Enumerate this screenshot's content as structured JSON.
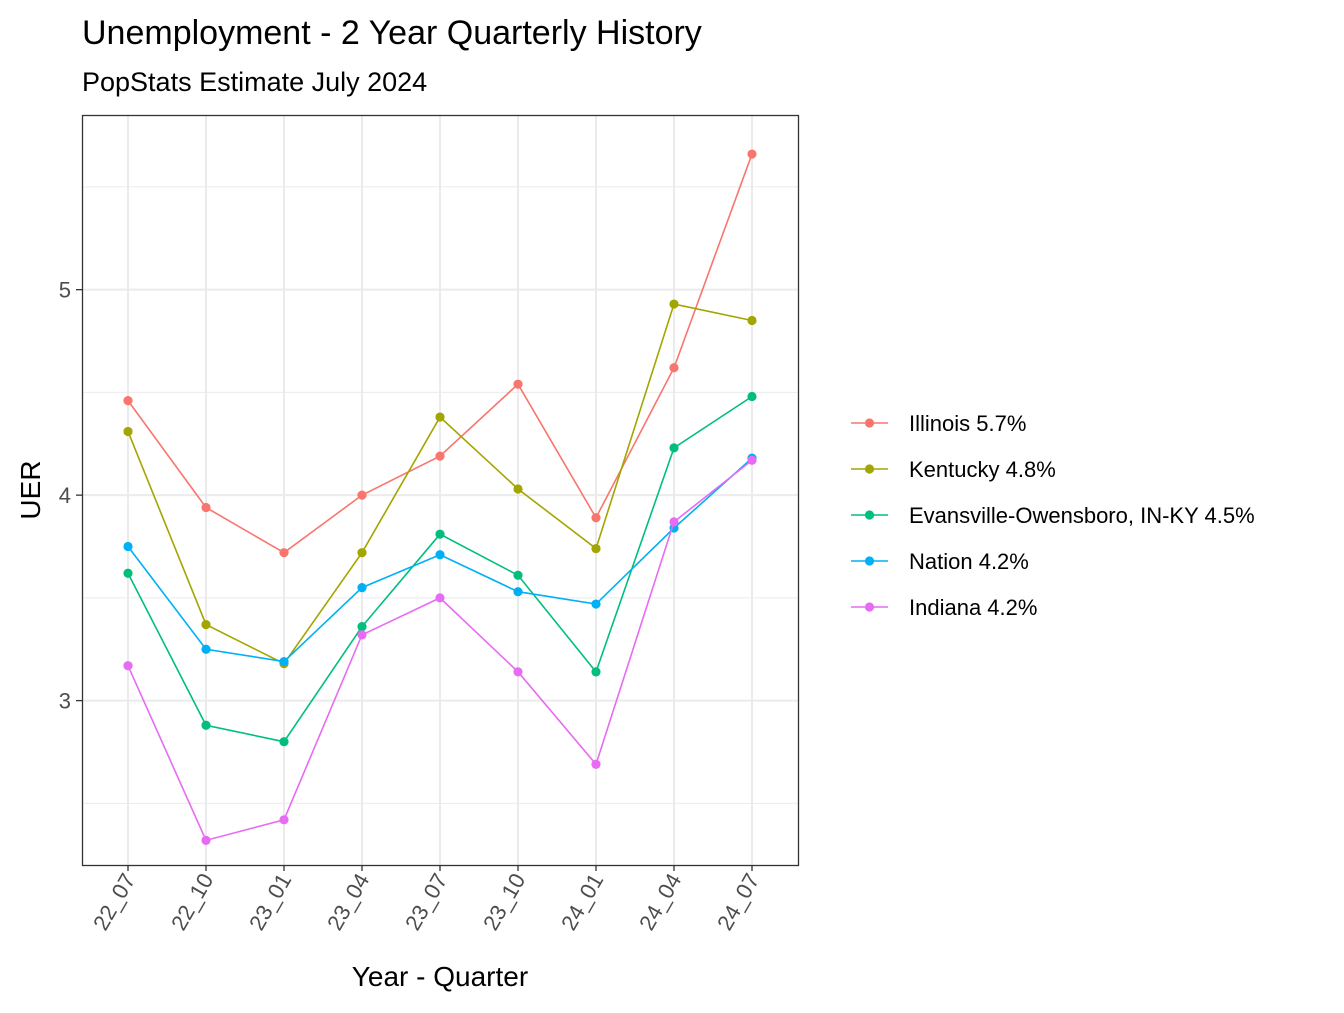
{
  "chart_data": {
    "type": "line",
    "title": "Unemployment - 2 Year Quarterly History",
    "subtitle": "PopStats Estimate July 2024",
    "xlabel": "Year - Quarter",
    "ylabel": "UER",
    "categories": [
      "22_07",
      "22_10",
      "23_01",
      "23_04",
      "23_07",
      "23_10",
      "24_01",
      "24_04",
      "24_07"
    ],
    "yticks": [
      "3",
      "4",
      "5"
    ],
    "ylim": [
      2.2,
      5.85
    ],
    "grid": true,
    "legend_position": "right",
    "series": [
      {
        "name": "Illinois 5.7%",
        "color": "#F8766D",
        "values": [
          4.46,
          3.94,
          3.72,
          4.0,
          4.19,
          4.54,
          3.89,
          4.62,
          5.66
        ]
      },
      {
        "name": "Kentucky 4.8%",
        "color": "#A3A500",
        "values": [
          4.31,
          3.37,
          3.18,
          3.72,
          4.38,
          4.03,
          3.74,
          4.93,
          4.85
        ]
      },
      {
        "name": "Evansville-Owensboro, IN-KY 4.5%",
        "color": "#00BF7D",
        "values": [
          3.62,
          2.88,
          2.8,
          3.36,
          3.81,
          3.61,
          3.14,
          4.23,
          4.48
        ]
      },
      {
        "name": "Nation 4.2%",
        "color": "#00B0F6",
        "values": [
          3.75,
          3.25,
          3.19,
          3.55,
          3.71,
          3.53,
          3.47,
          3.84,
          4.18
        ]
      },
      {
        "name": "Indiana 4.2%",
        "color": "#E76BF3",
        "values": [
          3.17,
          2.32,
          2.42,
          3.32,
          3.5,
          3.14,
          2.69,
          3.87,
          4.17
        ]
      }
    ]
  }
}
